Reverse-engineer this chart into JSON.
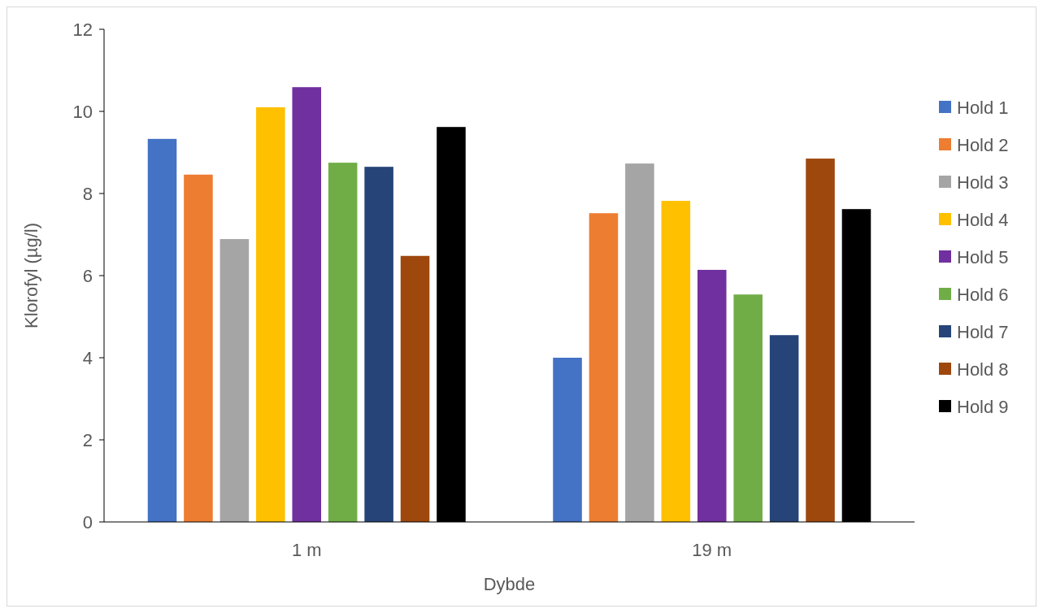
{
  "chart_data": {
    "type": "bar",
    "xlabel": "Dybde",
    "ylabel": "Klorofyl (µg/l)",
    "categories": [
      "1 m",
      "19 m"
    ],
    "series": [
      {
        "name": "Hold 1",
        "color": "#4472c4",
        "values": [
          9.33,
          4.0
        ]
      },
      {
        "name": "Hold 2",
        "color": "#ed7d31",
        "values": [
          8.46,
          7.52
        ]
      },
      {
        "name": "Hold 3",
        "color": "#a5a5a5",
        "values": [
          6.89,
          8.73
        ]
      },
      {
        "name": "Hold 4",
        "color": "#ffc000",
        "values": [
          10.1,
          7.82
        ]
      },
      {
        "name": "Hold 5",
        "color": "#7030a0",
        "values": [
          10.59,
          6.14
        ]
      },
      {
        "name": "Hold 6",
        "color": "#70ad47",
        "values": [
          8.75,
          5.54
        ]
      },
      {
        "name": "Hold 7",
        "color": "#264478",
        "values": [
          8.65,
          4.55
        ]
      },
      {
        "name": "Hold 8",
        "color": "#9e480e",
        "values": [
          6.48,
          8.85
        ]
      },
      {
        "name": "Hold 9",
        "color": "#000000",
        "values": [
          9.62,
          7.62
        ]
      }
    ],
    "ylim": [
      0,
      12
    ],
    "yticks": [
      0,
      2,
      4,
      6,
      8,
      10,
      12
    ],
    "grid": false,
    "legend": "right"
  }
}
